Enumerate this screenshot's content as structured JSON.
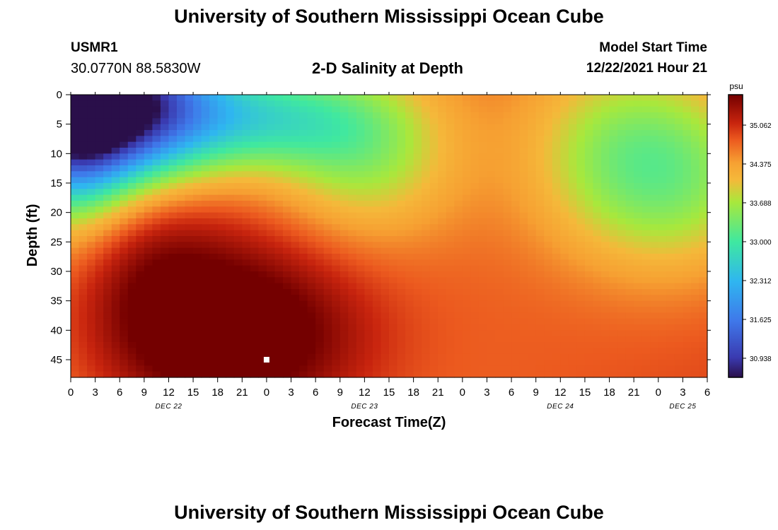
{
  "header": {
    "title": "University of Southern Mississippi Ocean Cube",
    "station_id": "USMR1",
    "station_coords": "30.0770N  88.5830W",
    "plot_title": "2-D Salinity at Depth",
    "model_start_label": "Model Start Time",
    "model_start_value": "12/22/2021 Hour 21"
  },
  "footer": {
    "title": "University of Southern Mississippi Ocean Cube"
  },
  "chart_data": {
    "type": "heatmap",
    "title": "2-D Salinity at Depth",
    "xlabel": "Forecast Time(Z)",
    "ylabel": "Depth (ft)",
    "x_range_hours": [
      0,
      78
    ],
    "x_step_hours": 3,
    "x_tick_labels": [
      "0",
      "3",
      "6",
      "9",
      "12",
      "15",
      "18",
      "21",
      "0",
      "3",
      "6",
      "9",
      "12",
      "15",
      "18",
      "21",
      "0",
      "3",
      "6",
      "9",
      "12",
      "15",
      "18",
      "21",
      "0",
      "3",
      "6"
    ],
    "date_labels": [
      {
        "label": "DEC 22",
        "hour": 12
      },
      {
        "label": "DEC 23",
        "hour": 36
      },
      {
        "label": "DEC 24",
        "hour": 60
      },
      {
        "label": "DEC 25",
        "hour": 75
      }
    ],
    "y_range_ft": [
      0,
      48
    ],
    "y_ticks": [
      0,
      5,
      10,
      15,
      20,
      25,
      30,
      35,
      40,
      45
    ],
    "y_tick_labels": [
      "0",
      "5",
      "10",
      "15",
      "20",
      "25",
      "30",
      "35",
      "40",
      "45"
    ],
    "colorbar": {
      "unit": "psu",
      "range": [
        30.6,
        35.6
      ],
      "ticks": [
        30.938,
        31.625,
        32.312,
        33.0,
        33.688,
        34.375,
        35.062
      ],
      "tick_labels": [
        "30.938",
        "31.625",
        "32.312",
        "33.000",
        "33.688",
        "34.375",
        "35.062"
      ],
      "stops": [
        {
          "v": 30.6,
          "c": "#2a0f4a"
        },
        {
          "v": 30.95,
          "c": "#3a3ab0"
        },
        {
          "v": 31.6,
          "c": "#3f78ea"
        },
        {
          "v": 32.3,
          "c": "#2fb6f0"
        },
        {
          "v": 33.0,
          "c": "#3fe8a0"
        },
        {
          "v": 33.7,
          "c": "#a8e83c"
        },
        {
          "v": 34.1,
          "c": "#f5b83a"
        },
        {
          "v": 34.4,
          "c": "#f6a032"
        },
        {
          "v": 34.8,
          "c": "#ec5a1f"
        },
        {
          "v": 35.1,
          "c": "#c8240e"
        },
        {
          "v": 35.6,
          "c": "#740000"
        }
      ]
    },
    "marker": {
      "hour": 24,
      "depth_ft": 45
    },
    "features": [
      {
        "kind": "offset",
        "value": 34.5
      },
      {
        "kind": "tilt",
        "hours": [
          0,
          78
        ],
        "delta": 0.4
      },
      {
        "kind": "blob",
        "hour": 5,
        "depth": 2,
        "sh": 9,
        "sd": 9,
        "amp": -4.2
      },
      {
        "kind": "blob",
        "hour": 0,
        "depth": 8,
        "sh": 5,
        "sd": 10,
        "amp": -1.6
      },
      {
        "kind": "blob",
        "hour": 24,
        "depth": 4,
        "sh": 9,
        "sd": 6,
        "amp": -1.3
      },
      {
        "kind": "blob",
        "hour": 36,
        "depth": 10,
        "sh": 8,
        "sd": 10,
        "amp": -1.1
      },
      {
        "kind": "blob",
        "hour": 66,
        "depth": 10,
        "sh": 8,
        "sd": 12,
        "amp": -1.0
      },
      {
        "kind": "blob",
        "hour": 76,
        "depth": 14,
        "sh": 8,
        "sd": 12,
        "amp": -1.1
      },
      {
        "kind": "blob",
        "hour": 16,
        "depth": 36,
        "sh": 13,
        "sd": 14,
        "amp": 0.7
      },
      {
        "kind": "blob",
        "hour": 22,
        "depth": 42,
        "sh": 10,
        "sd": 10,
        "amp": 0.8
      },
      {
        "kind": "blob",
        "hour": 10,
        "depth": 30,
        "sh": 6,
        "sd": 14,
        "amp": 0.4
      }
    ]
  }
}
